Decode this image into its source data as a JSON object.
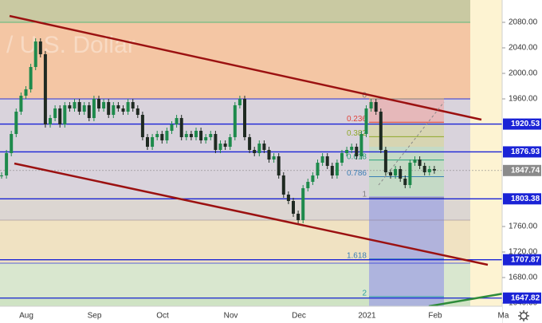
{
  "chart_data": {
    "type": "candlestick",
    "watermark": "/ U.S. Dollar",
    "categories": [
      "Aug",
      "Sep",
      "Oct",
      "Nov",
      "Dec",
      "2021",
      "Feb",
      "Ma"
    ],
    "closes": [
      1840,
      1875,
      1905,
      1940,
      1965,
      1975,
      2010,
      2050,
      2030,
      1920,
      1930,
      1945,
      1920,
      1950,
      1945,
      1955,
      1940,
      1950,
      1930,
      1960,
      1945,
      1955,
      1935,
      1950,
      1945,
      1940,
      1955,
      1945,
      1935,
      1900,
      1885,
      1900,
      1905,
      1895,
      1910,
      1920,
      1930,
      1900,
      1905,
      1900,
      1910,
      1895,
      1900,
      1905,
      1880,
      1890,
      1885,
      1900,
      1950,
      1960,
      1900,
      1880,
      1875,
      1890,
      1880,
      1865,
      1870,
      1840,
      1810,
      1800,
      1780,
      1770,
      1820,
      1830,
      1840,
      1860,
      1870,
      1855,
      1840,
      1860,
      1875,
      1880,
      1885,
      1870,
      1905,
      1945,
      1955,
      1940,
      1880,
      1845,
      1840,
      1850,
      1835,
      1825,
      1860,
      1865,
      1855,
      1845,
      1850,
      1847.74
    ],
    "up_color": "#1e8a4c",
    "down_color": "#1f2a22",
    "ylim": [
      1608.75,
      2115
    ],
    "yticks": [
      {
        "value": 2080,
        "label": "2080.00"
      },
      {
        "value": 2040,
        "label": "2040.00"
      },
      {
        "value": 2000,
        "label": "2000.00"
      },
      {
        "value": 1960,
        "label": "1960.00"
      },
      {
        "value": 1760,
        "label": "1760.00"
      },
      {
        "value": 1720,
        "label": "1720.00"
      },
      {
        "value": 1680,
        "label": "1680.00"
      },
      {
        "value": 1640,
        "label": "1640.00"
      }
    ],
    "price_lines": [
      {
        "value": 1920.53,
        "color": "#1a23d6"
      },
      {
        "value": 1876.93,
        "color": "#1a23d6"
      },
      {
        "value": 1847.74,
        "color": "#8a8a8a"
      },
      {
        "value": 1803.38,
        "color": "#1a23d6"
      },
      {
        "value": 1707.87,
        "color": "#1a23d6"
      },
      {
        "value": 1647.82,
        "color": "#1a23d6"
      }
    ],
    "fib": {
      "start": 1960,
      "end": 1805,
      "levels": [
        0,
        0.236,
        0.382,
        0.618,
        0.786,
        1,
        1.618,
        2
      ],
      "colors": [
        "#808080",
        "#e0413a",
        "#8fa82a",
        "#2aa37a",
        "#3b7fb5",
        "#808080",
        "#3b7fb5",
        "#2aa3a3"
      ]
    }
  }
}
